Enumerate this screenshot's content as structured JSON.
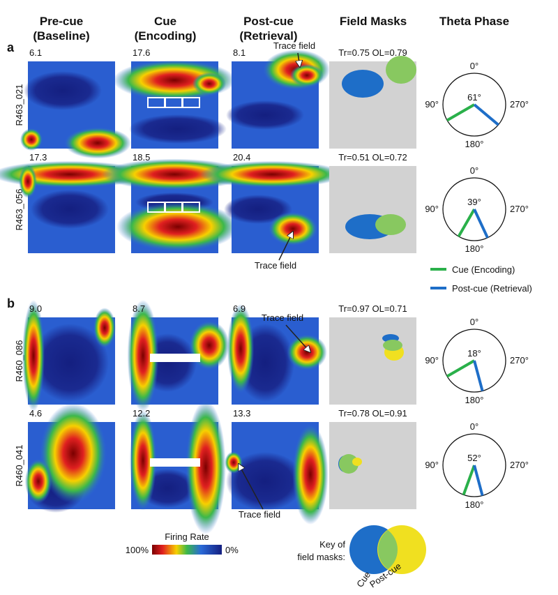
{
  "columns": [
    {
      "lines": [
        "Pre-cue",
        "(Baseline)"
      ]
    },
    {
      "lines": [
        "Cue",
        "(Encoding)"
      ]
    },
    {
      "lines": [
        "Post-cue",
        "(Retrieval)"
      ]
    },
    {
      "lines": [
        "Field Masks"
      ]
    },
    {
      "lines": [
        "Theta Phase"
      ]
    }
  ],
  "panels": [
    {
      "label": "a",
      "rows": [
        {
          "cell": "R463_021",
          "peaks": [
            "6.1",
            "17.6",
            "8.1"
          ],
          "mask_stats": "Tr=0.75 OL=0.79",
          "angle": "61°",
          "annotation": "Trace field"
        },
        {
          "cell": "R463_056",
          "peaks": [
            "17.3",
            "18.5",
            "20.4"
          ],
          "mask_stats": "Tr=0.51 OL=0.72",
          "angle": "39°",
          "annotation": "Trace field"
        }
      ]
    },
    {
      "label": "b",
      "rows": [
        {
          "cell": "R460_086",
          "peaks": [
            "9.0",
            "8.7",
            "6.9"
          ],
          "mask_stats": "Tr=0.97 OL=0.71",
          "angle": "18°",
          "annotation": "Trace field"
        },
        {
          "cell": "R460_041",
          "peaks": [
            "4.6",
            "12.2",
            "13.3"
          ],
          "mask_stats": "Tr=0.78 OL=0.91",
          "angle": "52°",
          "annotation": "Trace field"
        }
      ]
    }
  ],
  "polar_ticks": [
    "0°",
    "90°",
    "270°",
    "180°"
  ],
  "legend": [
    "Cue (Encoding)",
    "Post-cue (Retrieval)"
  ],
  "colorbar": {
    "title": "Firing Rate",
    "max": "100%",
    "min": "0%"
  },
  "key": {
    "lines": [
      "Key of",
      "field masks:"
    ],
    "cue": "Cue",
    "post_cue": "Post-cue"
  }
}
